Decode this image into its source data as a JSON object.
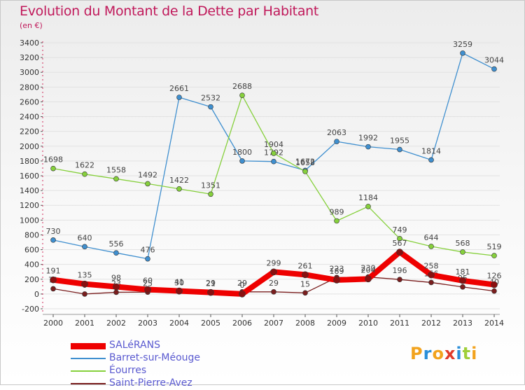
{
  "title": "Evolution du Montant de la Dette par Habitant",
  "subtitle": "(en €)",
  "logo": {
    "letters": [
      "P",
      "r",
      "o",
      "x",
      "i",
      "t",
      "i"
    ],
    "colors": [
      "#f2a31e",
      "#2a8ed8",
      "#f2a31e",
      "#e03a2a",
      "#2a8ed8",
      "#9fcf3a",
      "#f2a31e"
    ]
  },
  "chart_data": {
    "type": "line",
    "x": [
      "2000",
      "2001",
      "2002",
      "2003",
      "2004",
      "2005",
      "2006",
      "2007",
      "2008",
      "2009",
      "2010",
      "2011",
      "2012",
      "2013",
      "2014"
    ],
    "ylim": [
      -200,
      3400
    ],
    "yticks": [
      "-200",
      "0",
      "200",
      "400",
      "600",
      "800",
      "1000",
      "1200",
      "1400",
      "1600",
      "1800",
      "2000",
      "2200",
      "2400",
      "2600",
      "2800",
      "3000",
      "3200",
      "3400"
    ],
    "legend_position": "bottom-left",
    "series": [
      {
        "name": "SALéRANS",
        "color": "#ee0000",
        "values": [
          191,
          135,
          98,
          60,
          41,
          21,
          0,
          299,
          261,
          189,
          204,
          567,
          258,
          181,
          126
        ],
        "labels": [
          "191",
          "135",
          "98",
          "60",
          "41",
          "21",
          "0",
          "299",
          "261",
          "189",
          "204",
          "567",
          "258",
          "181",
          "126"
        ]
      },
      {
        "name": "Barret-sur-Méouge",
        "color": "#3f8fcf",
        "values": [
          730,
          640,
          556,
          476,
          2661,
          2532,
          1800,
          1792,
          1672,
          2063,
          1992,
          1955,
          1814,
          3259,
          3044
        ],
        "labels": [
          "730",
          "640",
          "556",
          "476",
          "2661",
          "2532",
          "1800",
          "1792",
          "1672",
          "2063",
          "1992",
          "1955",
          "1814",
          "3259",
          "3044"
        ]
      },
      {
        "name": "Éourres",
        "color": "#86d03c",
        "values": [
          1698,
          1622,
          1558,
          1492,
          1422,
          1351,
          2688,
          1904,
          1658,
          989,
          1184,
          749,
          644,
          568,
          519
        ],
        "labels": [
          "1698",
          "1622",
          "1558",
          "1492",
          "1422",
          "1351",
          "2688",
          "1904",
          "1658",
          "989",
          "1184",
          "749",
          "644",
          "568",
          "519"
        ]
      },
      {
        "name": "Saint-Pierre-Avez",
        "color": "#7a1e1e",
        "values": [
          71,
          0,
          23,
          25,
          30,
          29,
          29,
          29,
          15,
          223,
          230,
          196,
          156,
          95,
          40
        ],
        "labels": [
          "71",
          "0",
          "23",
          "25",
          "30",
          "29",
          "29",
          "29",
          "15",
          "223",
          "230",
          "196",
          "156",
          "95",
          "40"
        ]
      }
    ]
  }
}
